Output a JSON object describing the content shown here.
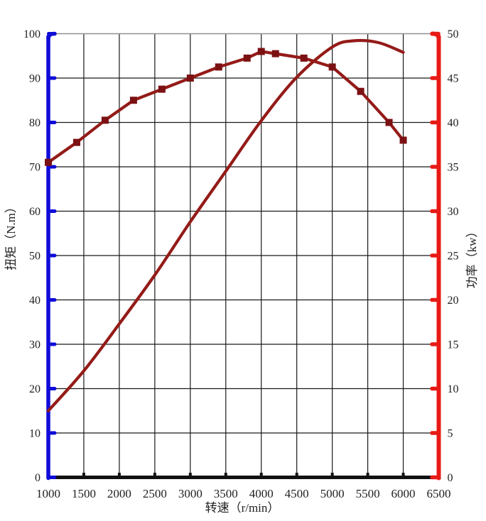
{
  "chart_data": {
    "type": "line",
    "title": "",
    "xlabel": "转速（r/min）",
    "ylabel_left": "扭矩（N.m）",
    "ylabel_right": "功率（kw）",
    "x_axis": {
      "min": 1000,
      "max": 6500,
      "step": 500,
      "ticks": [
        1000,
        1500,
        2000,
        2500,
        3000,
        3500,
        4000,
        4500,
        5000,
        5500,
        6000,
        6500
      ],
      "axis_color": "#111111"
    },
    "left_axis": {
      "label": "扭矩（N.m）",
      "unit": "N.m",
      "min": 0,
      "max": 100,
      "step": 10,
      "ticks": [
        0,
        10,
        20,
        30,
        40,
        50,
        60,
        70,
        80,
        90,
        100
      ],
      "axis_color": "#0f0cd8"
    },
    "right_axis": {
      "label": "功率（kw）",
      "unit": "kw",
      "min": 0,
      "max": 50,
      "step": 5,
      "ticks": [
        0,
        5,
        10,
        15,
        20,
        25,
        30,
        35,
        40,
        45,
        50
      ],
      "axis_color": "#e81a15"
    },
    "grid": {
      "show": true,
      "line_color": "#1a1a1a",
      "top_border_color": "#909090"
    },
    "series": [
      {
        "name": "torque",
        "axis": "left",
        "line_style": "segments",
        "marker": "square",
        "color": "#941b18",
        "marker_color": "#7c1113",
        "points": [
          [
            1000,
            71
          ],
          [
            1400,
            75.5
          ],
          [
            1800,
            80.5
          ],
          [
            2200,
            85
          ],
          [
            2600,
            87.5
          ],
          [
            3000,
            90
          ],
          [
            3400,
            92.5
          ],
          [
            3800,
            94.5
          ],
          [
            4000,
            96
          ],
          [
            4200,
            95.5
          ],
          [
            4600,
            94.5
          ],
          [
            5000,
            92.5
          ],
          [
            5400,
            87
          ],
          [
            5800,
            80
          ],
          [
            6000,
            76
          ]
        ]
      },
      {
        "name": "power",
        "axis": "right",
        "line_style": "smooth",
        "marker": "none",
        "color": "#941b18",
        "points": [
          [
            1000,
            7.5
          ],
          [
            1500,
            12
          ],
          [
            2000,
            17.3
          ],
          [
            2500,
            22.8
          ],
          [
            3000,
            28.8
          ],
          [
            3500,
            34.5
          ],
          [
            4000,
            40.2
          ],
          [
            4500,
            45.1
          ],
          [
            5000,
            48.5
          ],
          [
            5300,
            49.2
          ],
          [
            5650,
            49
          ],
          [
            6000,
            47.9
          ]
        ]
      }
    ],
    "text_color": "#212121",
    "legend": "none"
  }
}
